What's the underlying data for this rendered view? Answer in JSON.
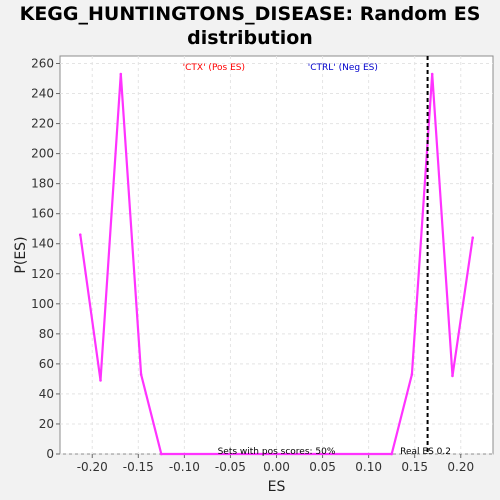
{
  "chart_data": {
    "type": "line",
    "title": "KEGG_HUNTINGTONS_DISEASE: Random ES distribution",
    "xlabel": "ES",
    "ylabel": "P(ES)",
    "xlim": [
      -0.235,
      0.235
    ],
    "ylim": [
      0,
      265
    ],
    "x_ticks": [
      -0.2,
      -0.15,
      -0.1,
      -0.05,
      0.0,
      0.05,
      0.1,
      0.15,
      0.2
    ],
    "x_tick_labels": [
      "-0.20",
      "-0.15",
      "-0.10",
      "-0.05",
      "0.00",
      "0.05",
      "0.10",
      "0.15",
      "0.20"
    ],
    "y_ticks": [
      0,
      20,
      40,
      60,
      80,
      100,
      120,
      140,
      160,
      180,
      200,
      220,
      240,
      260
    ],
    "y_tick_labels": [
      "0",
      "20",
      "40",
      "60",
      "80",
      "100",
      "120",
      "140",
      "160",
      "180",
      "200",
      "220",
      "240",
      "260"
    ],
    "grid": true,
    "series": [
      {
        "color": "#ff33ff",
        "x": [
          -0.213,
          -0.191,
          -0.169,
          -0.147,
          -0.125,
          0.125,
          0.147,
          0.169,
          0.191,
          0.213
        ],
        "y": [
          146,
          49,
          253,
          53,
          0,
          0,
          53,
          253,
          52,
          144
        ]
      }
    ],
    "annotations": {
      "pos_label": "'CTX' (Pos ES)",
      "pos_color": "#ff0000",
      "neg_label": "'CTRL' (Neg ES)",
      "neg_color": "#0000cc",
      "sets_text": "Sets with pos scores: 50%",
      "real_es_text": "Real ES 0.2",
      "real_es": 0.164
    }
  }
}
